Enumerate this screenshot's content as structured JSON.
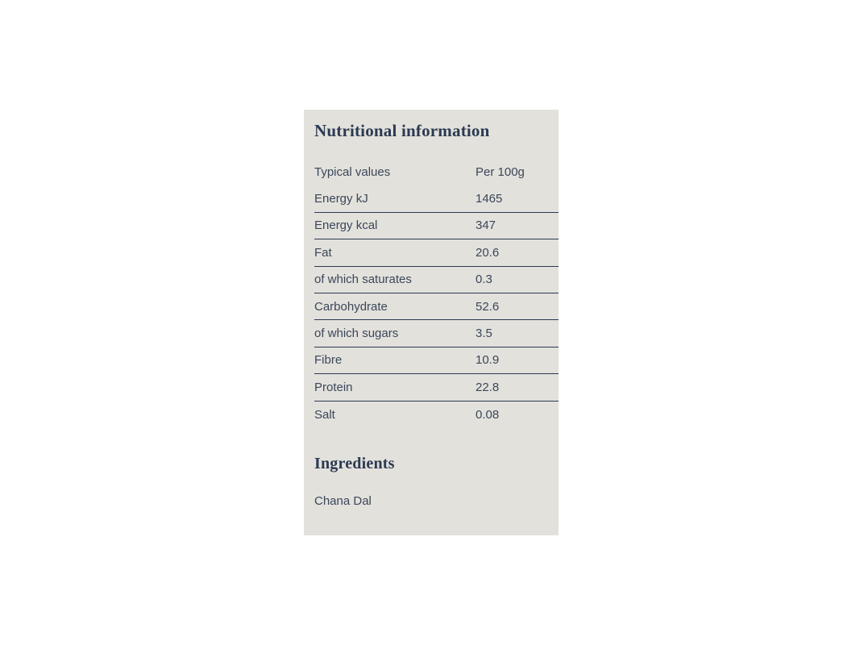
{
  "panel": {
    "title": "Nutritional information",
    "table": {
      "header": {
        "label": "Typical values",
        "value": "Per 100g"
      },
      "rows": [
        {
          "label": "Energy kJ",
          "value": "1465",
          "ruled": true
        },
        {
          "label": "Energy kcal",
          "value": "347",
          "ruled": true
        },
        {
          "label": "Fat",
          "value": "20.6",
          "ruled": true
        },
        {
          "label": "of which saturates",
          "value": "0.3",
          "ruled": true
        },
        {
          "label": "Carbohydrate",
          "value": "52.6",
          "ruled": true
        },
        {
          "label": "of which sugars",
          "value": "3.5",
          "ruled": true
        },
        {
          "label": "Fibre",
          "value": "10.9",
          "ruled": true
        },
        {
          "label": "Protein",
          "value": "22.8",
          "ruled": true
        },
        {
          "label": "Salt",
          "value": "0.08",
          "ruled": false
        }
      ]
    },
    "ingredients": {
      "heading": "Ingredients",
      "items": "Chana Dal"
    },
    "colors": {
      "card_bg": "#e3e1dc",
      "body_text": "#3a4759",
      "heading_text": "#2b3a52",
      "divider": "#2b3a52",
      "page_bg": "#ffffff"
    }
  }
}
